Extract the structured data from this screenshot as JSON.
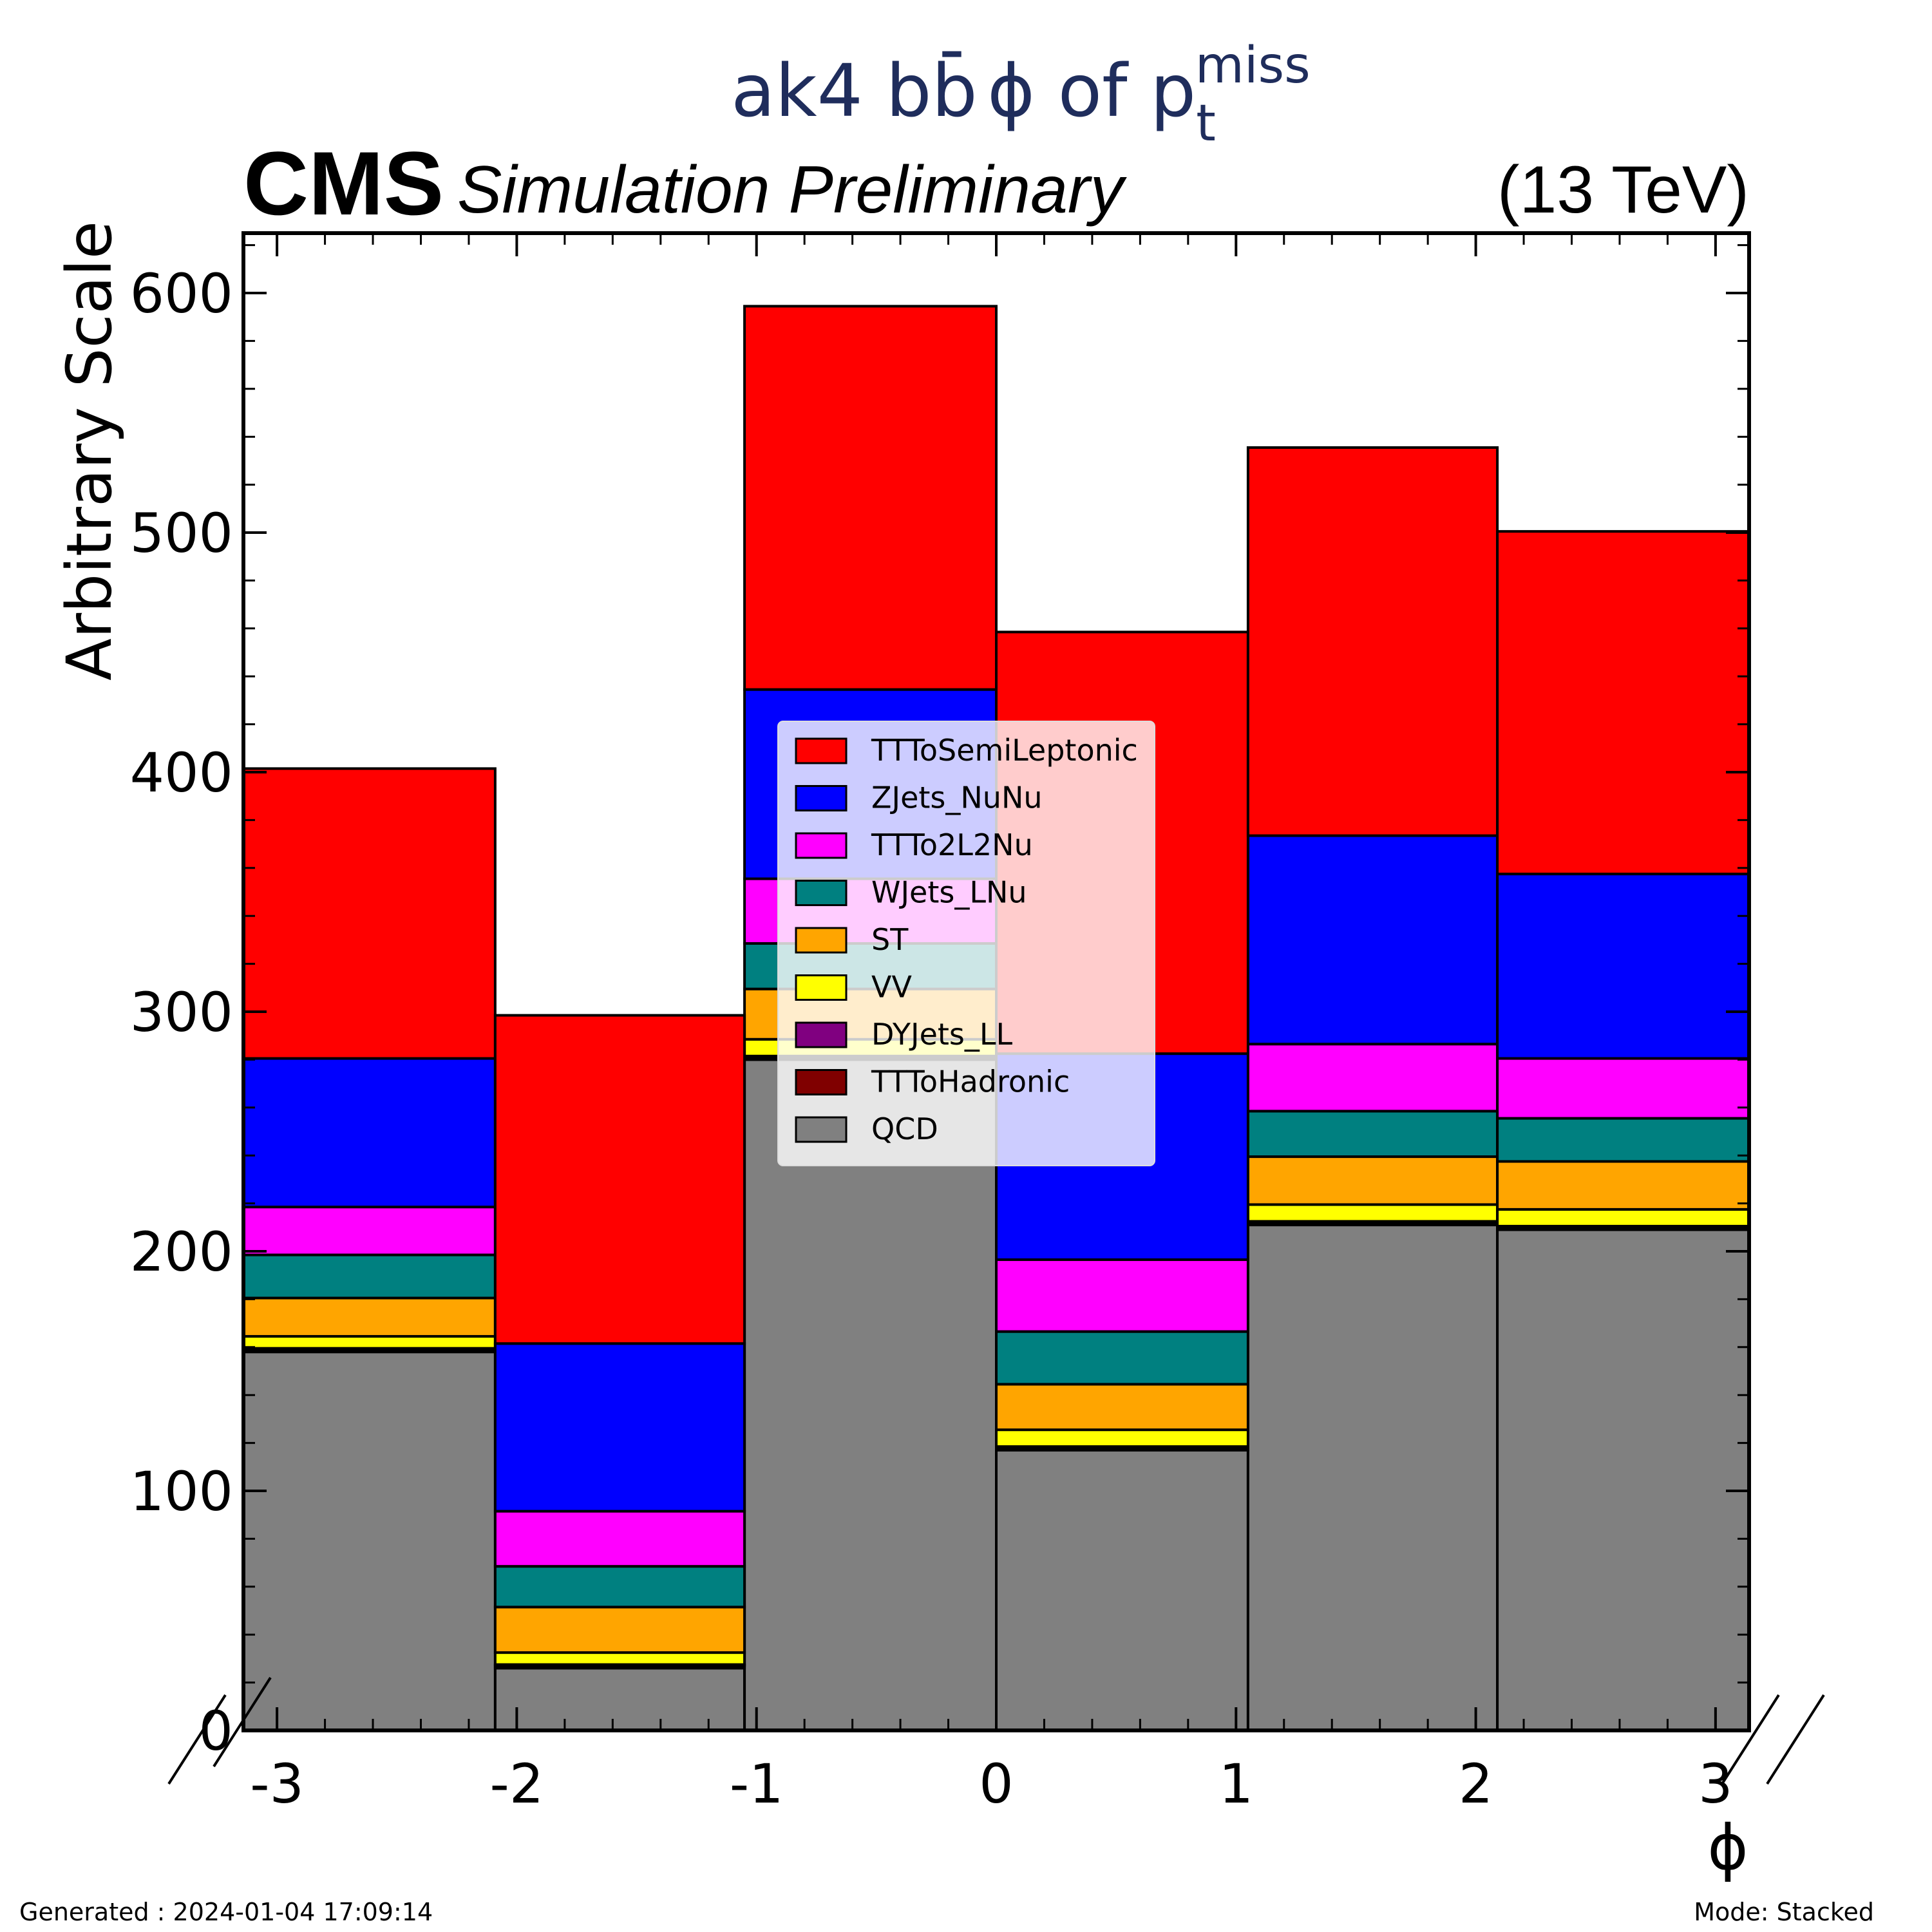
{
  "header": {
    "title_main": "ak4 b",
    "title_b": "b",
    "title_bar": "-",
    "title_phi": "ϕ of p",
    "title_sub": "t",
    "title_sup": "miss",
    "experiment": "CMS",
    "status": "Simulation Preliminary",
    "energy": "(13 TeV)"
  },
  "footer": {
    "generated": "Generated : 2024-01-04 17:09:14",
    "mode": "Mode: Stacked"
  },
  "chart_data": {
    "type": "bar",
    "stacked": true,
    "title": "ak4 bb̄ ϕ of p_t^miss",
    "xlabel": "ϕ",
    "ylabel": "Arbitrary Scale",
    "xlim": [
      -3.14,
      3.14
    ],
    "ylim": [
      0,
      625
    ],
    "bin_edges": [
      -3.14,
      -2.09,
      -1.05,
      0.0,
      1.05,
      2.09,
      3.14
    ],
    "xticks": [
      -3,
      -2,
      -1,
      0,
      1,
      2,
      3
    ],
    "xtick_labels": [
      "-3",
      "-2",
      "-1",
      "0",
      "1",
      "2",
      "3"
    ],
    "yticks": [
      0,
      100,
      200,
      300,
      400,
      500,
      600
    ],
    "ytick_labels": [
      "0",
      "100",
      "200",
      "300",
      "400",
      "500",
      "600"
    ],
    "legend_position": "upper-center",
    "grid": false,
    "series": [
      {
        "name": "QCD",
        "color": "#808080",
        "values": [
          158,
          26,
          280,
          117,
          211,
          209
        ]
      },
      {
        "name": "TTToHadronic",
        "color": "#800000",
        "values": [
          1,
          1,
          1,
          1,
          1,
          1
        ]
      },
      {
        "name": "DYJets_LL",
        "color": "#800080",
        "values": [
          0.5,
          0.5,
          0.5,
          0.5,
          0.5,
          0.5
        ]
      },
      {
        "name": "VV",
        "color": "#ffff00",
        "values": [
          5,
          5,
          7,
          7,
          7,
          7
        ]
      },
      {
        "name": "ST",
        "color": "#ffa500",
        "values": [
          16,
          19,
          21,
          19,
          20,
          20
        ]
      },
      {
        "name": "WJets_LNu",
        "color": "#008080",
        "values": [
          18,
          17,
          19,
          22,
          19,
          18
        ]
      },
      {
        "name": "TTTo2L2Nu",
        "color": "#ff00ff",
        "values": [
          20,
          23,
          27,
          30,
          28,
          25
        ]
      },
      {
        "name": "ZJets_NuNu",
        "color": "#0000ff",
        "values": [
          62,
          70,
          79,
          86,
          87,
          77
        ]
      },
      {
        "name": "TTToSemiLeptonic",
        "color": "#ff0000",
        "values": [
          121,
          137,
          160,
          176,
          162,
          143
        ]
      }
    ],
    "legend_order": [
      "TTToSemiLeptonic",
      "ZJets_NuNu",
      "TTTo2L2Nu",
      "WJets_LNu",
      "ST",
      "VV",
      "DYJets_LL",
      "TTToHadronic",
      "QCD"
    ]
  }
}
